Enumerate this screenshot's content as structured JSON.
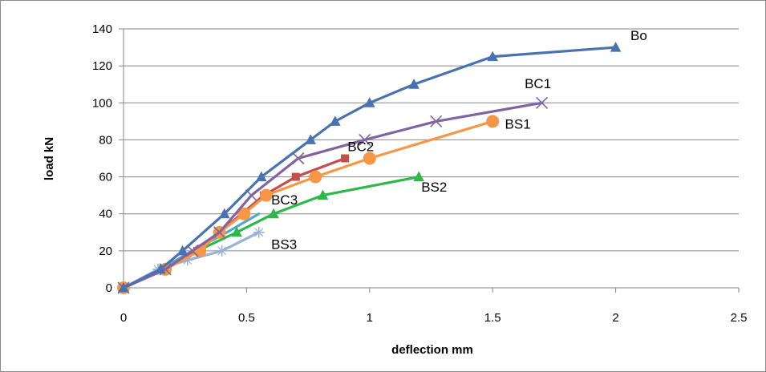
{
  "chart_data": {
    "type": "line",
    "title": "",
    "xlabel": "deflection mm",
    "ylabel": "load kN",
    "xlim": [
      0,
      2.5
    ],
    "ylim": [
      0,
      140
    ],
    "xticks": [
      "0",
      "0.5",
      "1",
      "1.5",
      "2",
      "2.5"
    ],
    "yticks": [
      "0",
      "20",
      "40",
      "60",
      "80",
      "100",
      "120",
      "140"
    ],
    "grid": "horizontal",
    "legend": "none",
    "series": [
      {
        "name": "Bo",
        "color": "#4a72b0",
        "marker": "triangle",
        "x": [
          0,
          0.15,
          0.24,
          0.41,
          0.56,
          0.76,
          0.86,
          1.0,
          1.18,
          1.5,
          2.0
        ],
        "y": [
          0,
          10,
          20,
          40,
          60,
          80,
          90,
          100,
          110,
          125,
          130
        ]
      },
      {
        "name": "BC1",
        "color": "#8064a2",
        "marker": "x",
        "x": [
          0,
          0.17,
          0.28,
          0.39,
          0.52,
          0.71,
          0.98,
          1.27,
          1.7
        ],
        "y": [
          0,
          10,
          20,
          30,
          50,
          70,
          80,
          90,
          100
        ]
      },
      {
        "name": "BS1",
        "color": "#f79646",
        "marker": "circle",
        "x": [
          0,
          0.17,
          0.31,
          0.39,
          0.49,
          0.58,
          0.78,
          1.0,
          1.5
        ],
        "y": [
          0,
          10,
          20,
          30,
          40,
          50,
          60,
          70,
          90
        ]
      },
      {
        "name": "BC2",
        "color": "#c0504d",
        "marker": "square",
        "x": [
          0,
          0.17,
          0.3,
          0.39,
          0.48,
          0.57,
          0.7,
          0.9
        ],
        "y": [
          0,
          10,
          20,
          30,
          40,
          50,
          60,
          70
        ]
      },
      {
        "name": "BC3",
        "color": "#4bacc6",
        "marker": "none",
        "x": [
          0,
          0.15,
          0.28,
          0.42,
          0.55
        ],
        "y": [
          0,
          10,
          20,
          30,
          40
        ]
      },
      {
        "name": "BS2",
        "color": "#2db84a",
        "marker": "triangle",
        "x": [
          0,
          0.17,
          0.3,
          0.46,
          0.61,
          0.81,
          1.2
        ],
        "y": [
          0,
          10,
          20,
          30,
          40,
          50,
          60
        ]
      },
      {
        "name": "BS3",
        "color": "#9bb1d6",
        "marker": "star",
        "x": [
          0,
          0.14,
          0.26,
          0.4,
          0.55
        ],
        "y": [
          0,
          10,
          15,
          20,
          30
        ]
      }
    ],
    "labels": [
      {
        "text": "Bo",
        "x": 2.06,
        "y": 134
      },
      {
        "text": "BC1",
        "x": 1.63,
        "y": 108
      },
      {
        "text": "BS1",
        "x": 1.55,
        "y": 86
      },
      {
        "text": "BC2",
        "x": 0.91,
        "y": 74
      },
      {
        "text": "BS2",
        "x": 1.21,
        "y": 52
      },
      {
        "text": "BC3",
        "x": 0.6,
        "y": 45
      },
      {
        "text": "BS3",
        "x": 0.6,
        "y": 21
      }
    ]
  }
}
